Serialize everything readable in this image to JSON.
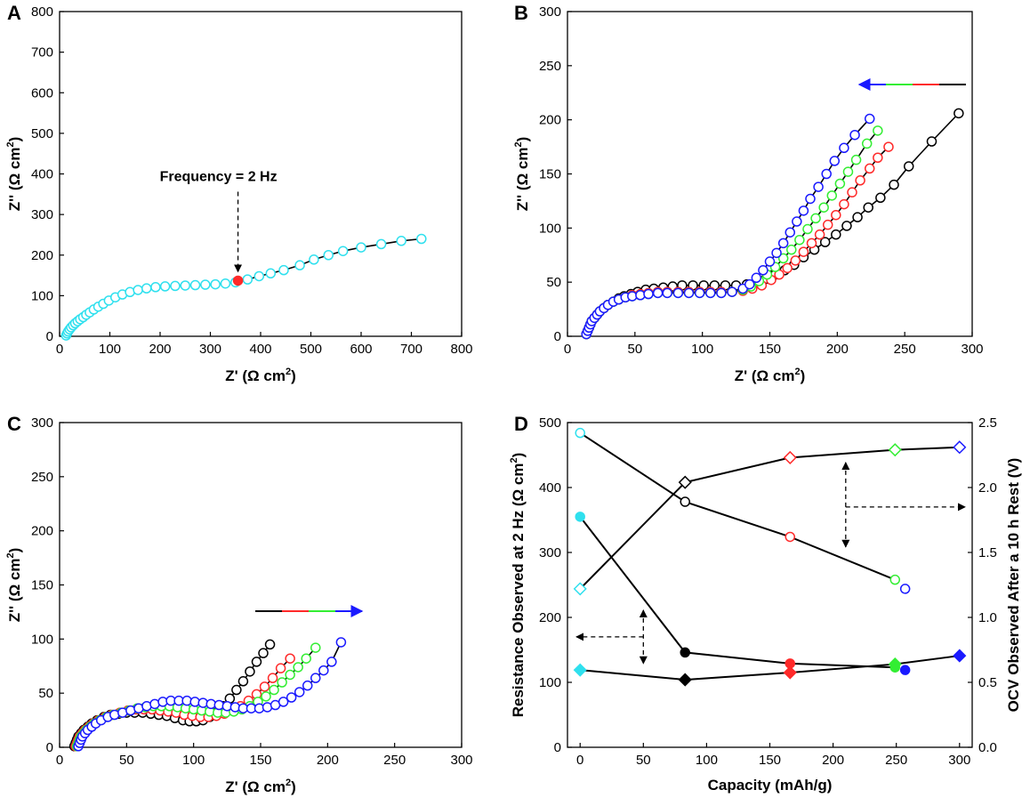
{
  "colors": {
    "cyan": "#2fe0ee",
    "black": "#000000",
    "red": "#ff2a2a",
    "green": "#33ee33",
    "blue": "#1a1aff"
  },
  "chart_data": [
    {
      "id": "A",
      "panel_label": "A",
      "type": "scatter",
      "xlabel": "Z' (Ω cm",
      "ylabel": "Z'' (Ω cm",
      "unit_superscript": "2",
      "unit_close": ")",
      "xlim": [
        0,
        800
      ],
      "ylim": [
        0,
        800
      ],
      "xticks": [
        0,
        100,
        200,
        300,
        400,
        500,
        600,
        700,
        800
      ],
      "yticks": [
        0,
        100,
        200,
        300,
        400,
        500,
        600,
        700,
        800
      ],
      "annotation": {
        "text": "Frequency = 2 Hz",
        "x": 355,
        "y": 137
      },
      "series": [
        {
          "name": "cyan",
          "color": "cyan",
          "marker": "circle",
          "x": [
            13,
            15,
            17,
            20,
            23,
            27,
            31,
            36,
            41,
            47,
            53,
            60,
            68,
            77,
            87,
            98,
            111,
            125,
            140,
            156,
            173,
            191,
            210,
            230,
            250,
            270,
            290,
            310,
            330,
            350,
            374,
            397,
            420,
            446,
            478,
            506,
            535,
            564,
            600,
            640,
            680,
            720
          ],
          "y": [
            2,
            7,
            12,
            17,
            22,
            27,
            32,
            37,
            42,
            47,
            53,
            59,
            66,
            73,
            80,
            88,
            96,
            103,
            109,
            114,
            118,
            121,
            123,
            124,
            125,
            126,
            127,
            128,
            130,
            133,
            140,
            148,
            155,
            163,
            175,
            189,
            200,
            210,
            219,
            227,
            235,
            240
          ]
        },
        {
          "name": "2 Hz point",
          "color": "red",
          "marker": "filled-circle",
          "x": [
            355
          ],
          "y": [
            137
          ]
        }
      ]
    },
    {
      "id": "B",
      "panel_label": "B",
      "type": "scatter",
      "xlabel": "Z' (Ω cm",
      "ylabel": "Z'' (Ω cm",
      "unit_superscript": "2",
      "unit_close": ")",
      "xlim": [
        0,
        300
      ],
      "ylim": [
        0,
        300
      ],
      "xticks": [
        0,
        50,
        100,
        150,
        200,
        250,
        300
      ],
      "yticks": [
        0,
        50,
        100,
        150,
        200,
        250,
        300
      ],
      "legend_arrow": {
        "direction": "left",
        "order": [
          "black",
          "red",
          "green",
          "blue"
        ]
      },
      "series": [
        {
          "name": "black",
          "color": "black",
          "marker": "circle",
          "x": [
            14,
            15,
            16,
            17,
            18,
            20,
            22,
            24,
            27,
            30,
            34,
            38,
            42,
            47,
            52,
            58,
            64,
            71,
            78,
            85,
            93,
            101,
            109,
            117,
            125,
            133,
            140,
            147,
            154,
            161,
            168,
            175,
            183,
            191,
            199,
            207,
            215,
            223,
            232,
            242,
            253,
            270,
            290
          ],
          "y": [
            2,
            5,
            8,
            11,
            14,
            17,
            20,
            23,
            26,
            29,
            32,
            35,
            37,
            39,
            41,
            43,
            44,
            45,
            46,
            47,
            47,
            47,
            47,
            47,
            47,
            48,
            50,
            53,
            57,
            61,
            66,
            73,
            80,
            87,
            94,
            102,
            110,
            119,
            128,
            140,
            157,
            180,
            206
          ]
        },
        {
          "name": "red",
          "color": "red",
          "marker": "circle",
          "x": [
            14,
            15,
            16,
            17,
            18,
            20,
            22,
            24,
            27,
            30,
            34,
            38,
            43,
            48,
            54,
            60,
            67,
            74,
            82,
            90,
            98,
            106,
            114,
            122,
            130,
            137,
            144,
            151,
            157,
            163,
            169,
            175,
            181,
            187,
            193,
            199,
            205,
            211,
            217,
            224,
            230,
            238
          ],
          "y": [
            2,
            5,
            8,
            11,
            14,
            17,
            20,
            23,
            26,
            29,
            32,
            34,
            36,
            38,
            39,
            40,
            41,
            41,
            41,
            41,
            41,
            41,
            41,
            41,
            42,
            44,
            47,
            52,
            57,
            63,
            70,
            78,
            86,
            94,
            103,
            112,
            122,
            133,
            144,
            155,
            165,
            175
          ]
        },
        {
          "name": "green",
          "color": "green",
          "marker": "circle",
          "x": [
            14,
            15,
            16,
            17,
            18,
            20,
            22,
            24,
            27,
            30,
            34,
            38,
            43,
            48,
            54,
            60,
            67,
            74,
            82,
            90,
            98,
            106,
            114,
            122,
            130,
            136,
            142,
            148,
            154,
            160,
            166,
            172,
            178,
            184,
            190,
            196,
            202,
            208,
            214,
            222,
            230
          ],
          "y": [
            2,
            5,
            8,
            11,
            14,
            17,
            20,
            23,
            26,
            29,
            32,
            34,
            36,
            37,
            38,
            39,
            40,
            40,
            40,
            40,
            40,
            40,
            40,
            41,
            43,
            46,
            51,
            57,
            64,
            72,
            80,
            89,
            99,
            109,
            119,
            130,
            141,
            152,
            163,
            178,
            190
          ]
        },
        {
          "name": "blue",
          "color": "blue",
          "marker": "circle",
          "x": [
            14,
            15,
            16,
            17,
            18,
            20,
            22,
            24,
            27,
            30,
            34,
            38,
            43,
            48,
            54,
            60,
            67,
            74,
            82,
            90,
            98,
            106,
            114,
            122,
            130,
            135,
            140,
            145,
            150,
            155,
            160,
            165,
            170,
            175,
            180,
            186,
            192,
            198,
            205,
            213,
            224
          ],
          "y": [
            2,
            5,
            8,
            11,
            14,
            17,
            20,
            23,
            26,
            29,
            32,
            34,
            36,
            37,
            38,
            39,
            40,
            40,
            40,
            40,
            40,
            40,
            40,
            41,
            44,
            48,
            54,
            61,
            69,
            77,
            86,
            96,
            106,
            116,
            127,
            138,
            150,
            162,
            174,
            186,
            201
          ]
        }
      ]
    },
    {
      "id": "C",
      "panel_label": "C",
      "type": "scatter",
      "xlabel": "Z' (Ω cm",
      "ylabel": "Z'' (Ω cm",
      "unit_superscript": "2",
      "unit_close": ")",
      "xlim": [
        0,
        300
      ],
      "ylim": [
        0,
        300
      ],
      "xticks": [
        0,
        50,
        100,
        150,
        200,
        250,
        300
      ],
      "yticks": [
        0,
        50,
        100,
        150,
        200,
        250,
        300
      ],
      "legend_arrow": {
        "direction": "right",
        "order": [
          "black",
          "red",
          "green",
          "blue"
        ]
      },
      "series": [
        {
          "name": "black",
          "color": "black",
          "marker": "circle",
          "x": [
            11,
            12,
            13,
            14,
            16,
            18,
            21,
            24,
            28,
            33,
            38,
            44,
            50,
            56,
            62,
            68,
            74,
            80,
            86,
            92,
            97,
            102,
            107,
            112,
            117,
            122,
            127,
            132,
            137,
            142,
            147,
            152,
            157
          ],
          "y": [
            1,
            4,
            7,
            10,
            13,
            16,
            19,
            22,
            25,
            28,
            30,
            31,
            32,
            32,
            32,
            31,
            30,
            29,
            27,
            25,
            24,
            24,
            25,
            28,
            32,
            38,
            45,
            53,
            61,
            70,
            79,
            87,
            95
          ]
        },
        {
          "name": "red",
          "color": "red",
          "marker": "circle",
          "x": [
            12,
            13,
            14,
            15,
            17,
            19,
            22,
            25,
            29,
            34,
            39,
            45,
            51,
            57,
            63,
            69,
            75,
            81,
            87,
            93,
            99,
            105,
            111,
            117,
            123,
            129,
            135,
            141,
            147,
            153,
            159,
            165,
            172
          ],
          "y": [
            1,
            4,
            7,
            10,
            13,
            16,
            19,
            22,
            25,
            28,
            30,
            32,
            34,
            35,
            35,
            35,
            34,
            33,
            32,
            30,
            29,
            28,
            28,
            29,
            31,
            34,
            38,
            43,
            49,
            56,
            64,
            73,
            82
          ]
        },
        {
          "name": "green",
          "color": "green",
          "marker": "circle",
          "x": [
            13,
            14,
            15,
            16,
            18,
            20,
            23,
            26,
            30,
            35,
            40,
            46,
            52,
            58,
            64,
            70,
            76,
            82,
            88,
            94,
            100,
            106,
            112,
            118,
            124,
            130,
            136,
            142,
            148,
            154,
            160,
            166,
            172,
            178,
            184,
            191
          ],
          "y": [
            1,
            4,
            7,
            10,
            13,
            16,
            19,
            22,
            25,
            28,
            30,
            32,
            34,
            36,
            37,
            38,
            38,
            38,
            37,
            36,
            35,
            34,
            33,
            32,
            32,
            33,
            35,
            38,
            42,
            47,
            53,
            60,
            67,
            74,
            82,
            92
          ]
        },
        {
          "name": "blue",
          "color": "blue",
          "marker": "circle",
          "x": [
            14,
            15,
            16,
            17,
            19,
            21,
            24,
            27,
            31,
            36,
            41,
            47,
            53,
            59,
            65,
            71,
            77,
            83,
            89,
            95,
            101,
            107,
            113,
            119,
            125,
            131,
            137,
            143,
            149,
            155,
            161,
            167,
            173,
            179,
            185,
            191,
            197,
            203,
            210
          ],
          "y": [
            1,
            4,
            7,
            10,
            13,
            16,
            19,
            22,
            25,
            28,
            30,
            32,
            34,
            36,
            38,
            40,
            42,
            43,
            43,
            43,
            42,
            41,
            40,
            39,
            38,
            37,
            36,
            36,
            36,
            37,
            39,
            42,
            46,
            51,
            57,
            64,
            71,
            79,
            97
          ]
        }
      ]
    },
    {
      "id": "D",
      "panel_label": "D",
      "type": "scatter",
      "xlabel": "Capacity (mAh/g)",
      "ylabel": "Resistance Observed at 2 Hz (Ω cm",
      "y2label": "OCV Observed After a 10 h Rest (V)",
      "unit_superscript": "2",
      "unit_close": ")",
      "xlim": [
        -10,
        310
      ],
      "ylim": [
        0,
        500
      ],
      "y2lim": [
        0,
        2.5
      ],
      "xticks": [
        0,
        50,
        100,
        150,
        200,
        250,
        300
      ],
      "yticks": [
        0,
        100,
        200,
        300,
        400,
        500
      ],
      "y2ticks": [
        "0.0",
        "0.5",
        "1.0",
        "1.5",
        "2.0",
        "2.5"
      ],
      "series": [
        {
          "name": "resistance (charge)",
          "axis": "left",
          "marker": "filled-diamond",
          "points": [
            {
              "x": 0,
              "y": 119,
              "color": "cyan"
            },
            {
              "x": 83,
              "y": 104,
              "color": "black"
            },
            {
              "x": 166,
              "y": 115,
              "color": "red"
            },
            {
              "x": 249,
              "y": 128,
              "color": "green"
            },
            {
              "x": 300,
              "y": 141,
              "color": "blue"
            }
          ]
        },
        {
          "name": "resistance (discharge)",
          "axis": "left",
          "marker": "filled-circle",
          "points": [
            {
              "x": 0,
              "y": 355,
              "color": "cyan"
            },
            {
              "x": 83,
              "y": 146,
              "color": "black"
            },
            {
              "x": 166,
              "y": 129,
              "color": "red"
            },
            {
              "x": 249,
              "y": 123,
              "color": "green"
            },
            {
              "x": 257,
              "y": 119,
              "color": "blue"
            }
          ]
        },
        {
          "name": "OCV (charge)",
          "axis": "right",
          "marker": "open-diamond",
          "points": [
            {
              "x": 0,
              "y": 1.22,
              "color": "cyan"
            },
            {
              "x": 83,
              "y": 2.04,
              "color": "black"
            },
            {
              "x": 166,
              "y": 2.23,
              "color": "red"
            },
            {
              "x": 249,
              "y": 2.29,
              "color": "green"
            },
            {
              "x": 300,
              "y": 2.31,
              "color": "blue"
            }
          ]
        },
        {
          "name": "OCV (discharge)",
          "axis": "right",
          "marker": "open-circle",
          "points": [
            {
              "x": 0,
              "y": 2.42,
              "color": "cyan"
            },
            {
              "x": 83,
              "y": 1.89,
              "color": "black"
            },
            {
              "x": 166,
              "y": 1.62,
              "color": "red"
            },
            {
              "x": 249,
              "y": 1.29,
              "color": "green"
            },
            {
              "x": 257,
              "y": 1.22,
              "color": "blue"
            }
          ]
        }
      ],
      "axis_indicators": [
        {
          "points_to": "left",
          "x": 50,
          "y": 170
        },
        {
          "points_to": "right",
          "x": 210,
          "y": 1.85
        }
      ]
    }
  ]
}
